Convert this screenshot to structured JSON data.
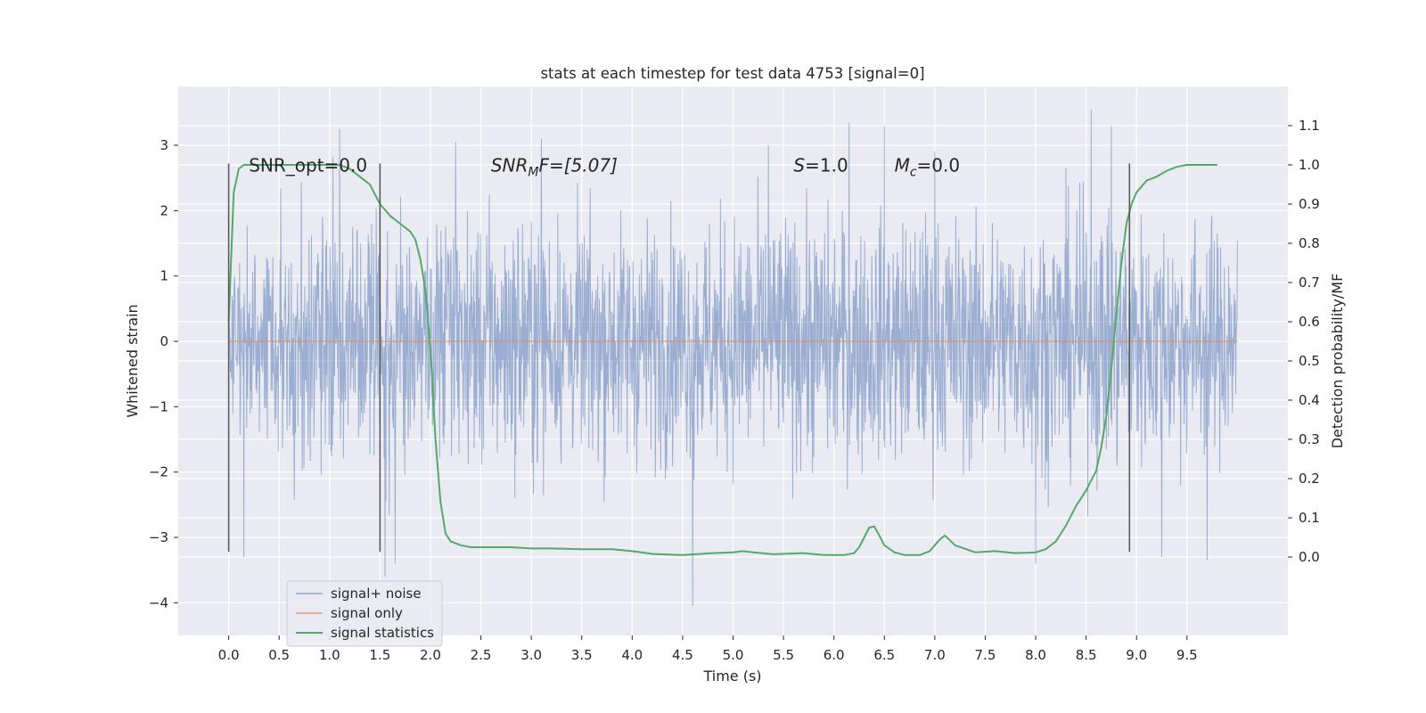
{
  "chart_data": {
    "type": "line",
    "title": "stats at each timestep for test data 4753 [signal=0]",
    "xlabel": "Time (s)",
    "ylabel_left": "Whitened strain",
    "ylabel_right": "Detection probability/MF",
    "xlim": [
      -0.5,
      10.5
    ],
    "ylim_left": [
      -4.5,
      3.9
    ],
    "ylim_right": [
      -0.2,
      1.2
    ],
    "x_ticks": [
      "0.0",
      "0.5",
      "1.0",
      "1.5",
      "2.0",
      "2.5",
      "3.0",
      "3.5",
      "4.0",
      "4.5",
      "5.0",
      "5.5",
      "6.0",
      "6.5",
      "7.0",
      "7.5",
      "8.0",
      "8.5",
      "9.0",
      "9.5"
    ],
    "y_ticks_left": [
      "−4",
      "−3",
      "−2",
      "−1",
      "0",
      "1",
      "2",
      "3"
    ],
    "y_ticks_right": [
      "0.0",
      "0.1",
      "0.2",
      "0.3",
      "0.4",
      "0.5",
      "0.6",
      "0.7",
      "0.8",
      "0.9",
      "1.0",
      "1.1"
    ],
    "grid": true,
    "legend_placement": "lower-left",
    "annotations": [
      {
        "base": "SNR_opt=0.0",
        "sub": "",
        "tail": "",
        "x": 0.2
      },
      {
        "base": "SNR",
        "sub": "M",
        "tail": "F=[5.07]",
        "x": 2.6
      },
      {
        "base": "S",
        "sub": "",
        "tail": "=1.0",
        "x": 5.6
      },
      {
        "base": "M",
        "sub": "c",
        "tail": "=0.0",
        "x": 6.6
      }
    ],
    "annotation_y": 2.6,
    "vertical_lines": {
      "x": [
        0.0,
        1.5,
        8.93
      ],
      "y_range": [
        -3.22,
        2.72
      ]
    },
    "series": [
      {
        "name": "signal+ noise",
        "color": "#4c72b0",
        "axis": "left",
        "kind": "noise",
        "x_range": [
          0,
          10
        ],
        "envelope": [
          {
            "x": 0.0,
            "y": 1.0
          },
          {
            "x": 0.2,
            "y": 2.3
          },
          {
            "x": 0.5,
            "y": 2.4
          },
          {
            "x": 1.0,
            "y": 2.4
          },
          {
            "x": 1.5,
            "y": 2.3
          },
          {
            "x": 2.0,
            "y": 2.3
          },
          {
            "x": 2.5,
            "y": 2.4
          },
          {
            "x": 3.0,
            "y": 2.4
          },
          {
            "x": 3.5,
            "y": 2.3
          },
          {
            "x": 4.0,
            "y": 2.3
          },
          {
            "x": 4.5,
            "y": 2.3
          },
          {
            "x": 5.0,
            "y": 2.4
          },
          {
            "x": 5.5,
            "y": 2.4
          },
          {
            "x": 6.0,
            "y": 2.4
          },
          {
            "x": 6.5,
            "y": 2.3
          },
          {
            "x": 7.0,
            "y": 2.4
          },
          {
            "x": 7.5,
            "y": 2.3
          },
          {
            "x": 8.0,
            "y": 2.4
          },
          {
            "x": 8.5,
            "y": 2.6
          },
          {
            "x": 9.0,
            "y": 2.4
          },
          {
            "x": 9.5,
            "y": 2.3
          },
          {
            "x": 10.0,
            "y": 2.2
          }
        ],
        "spikes": [
          {
            "x": 1.1,
            "y": 3.25
          },
          {
            "x": 1.55,
            "y": -3.6
          },
          {
            "x": 1.65,
            "y": -3.4
          },
          {
            "x": 4.6,
            "y": -4.05
          },
          {
            "x": 6.15,
            "y": 3.35
          },
          {
            "x": 6.5,
            "y": 3.3
          },
          {
            "x": 8.55,
            "y": 3.55
          },
          {
            "x": 8.75,
            "y": 3.3
          },
          {
            "x": 7.0,
            "y": 2.9
          },
          {
            "x": 0.15,
            "y": -3.3
          },
          {
            "x": 9.25,
            "y": -3.3
          },
          {
            "x": 9.7,
            "y": -3.35
          },
          {
            "x": 8.0,
            "y": -3.4
          },
          {
            "x": 3.1,
            "y": 3.1
          },
          {
            "x": 5.35,
            "y": 3.0
          },
          {
            "x": 2.25,
            "y": 3.05
          }
        ]
      },
      {
        "name": "signal only",
        "color": "#dd8452",
        "axis": "left",
        "kind": "line",
        "x": [
          0,
          10
        ],
        "y": [
          0,
          0
        ]
      },
      {
        "name": "signal statistics",
        "color": "#55a868",
        "axis": "right",
        "kind": "line",
        "x": [
          0.0,
          0.05,
          0.1,
          0.15,
          0.25,
          0.4,
          0.6,
          0.8,
          1.0,
          1.1,
          1.2,
          1.3,
          1.4,
          1.5,
          1.6,
          1.7,
          1.8,
          1.85,
          1.9,
          1.95,
          2.0,
          2.05,
          2.1,
          2.15,
          2.2,
          2.3,
          2.4,
          2.6,
          2.8,
          3.0,
          3.2,
          3.5,
          3.8,
          4.0,
          4.2,
          4.5,
          4.8,
          5.0,
          5.1,
          5.2,
          5.4,
          5.7,
          5.9,
          6.1,
          6.2,
          6.25,
          6.3,
          6.35,
          6.4,
          6.45,
          6.5,
          6.6,
          6.7,
          6.85,
          6.95,
          7.05,
          7.1,
          7.2,
          7.4,
          7.6,
          7.8,
          8.0,
          8.1,
          8.2,
          8.3,
          8.4,
          8.5,
          8.6,
          8.65,
          8.7,
          8.75,
          8.8,
          8.85,
          8.9,
          8.95,
          9.0,
          9.1,
          9.2,
          9.3,
          9.4,
          9.5,
          9.7,
          9.8
        ],
        "y": [
          0.6,
          0.93,
          0.99,
          1.0,
          1.0,
          1.0,
          1.0,
          1.0,
          1.0,
          1.0,
          0.99,
          0.97,
          0.95,
          0.9,
          0.87,
          0.85,
          0.83,
          0.81,
          0.76,
          0.68,
          0.53,
          0.3,
          0.14,
          0.06,
          0.04,
          0.03,
          0.025,
          0.025,
          0.025,
          0.022,
          0.022,
          0.02,
          0.02,
          0.015,
          0.008,
          0.005,
          0.01,
          0.012,
          0.015,
          0.012,
          0.007,
          0.01,
          0.005,
          0.005,
          0.01,
          0.025,
          0.05,
          0.075,
          0.078,
          0.055,
          0.03,
          0.012,
          0.005,
          0.005,
          0.015,
          0.045,
          0.055,
          0.03,
          0.012,
          0.015,
          0.01,
          0.012,
          0.02,
          0.04,
          0.08,
          0.13,
          0.17,
          0.22,
          0.28,
          0.36,
          0.48,
          0.62,
          0.75,
          0.85,
          0.9,
          0.93,
          0.96,
          0.97,
          0.985,
          0.995,
          1.0,
          1.0,
          1.0
        ]
      }
    ]
  }
}
